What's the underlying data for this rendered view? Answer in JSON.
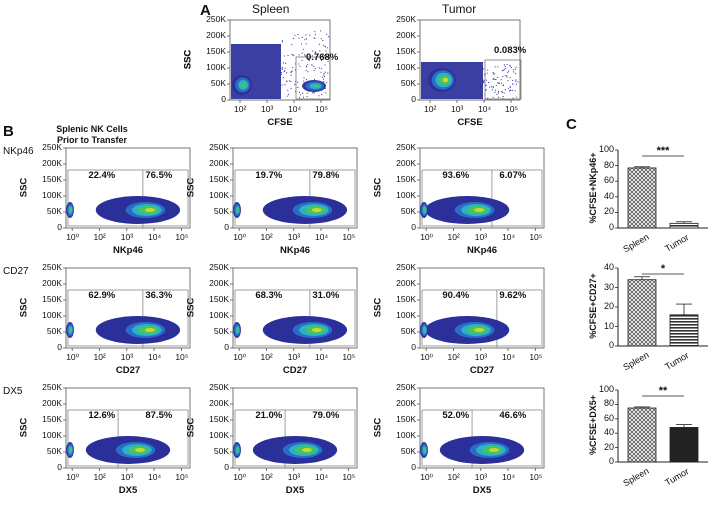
{
  "panels": {
    "A": "A",
    "B": "B",
    "C": "C"
  },
  "panel_a": {
    "spleen_title": "Spleen",
    "tumor_title": "Tumor",
    "spleen_pct": "0.768%",
    "tumor_pct": "0.083%",
    "xlabel": "CFSE",
    "ylabel": "SSC",
    "yticks": [
      "250K",
      "200K",
      "150K",
      "100K",
      "50K",
      "0"
    ]
  },
  "panel_b": {
    "col1_title_line1": "Splenic NK Cells",
    "col1_title_line2": "Prior to Transfer",
    "ylabel": "SSC",
    "yticks": [
      "250K",
      "200K",
      "150K",
      "100K",
      "50K",
      "0"
    ],
    "rows": [
      {
        "marker": "NKp46",
        "xlabel": "NKp46",
        "plots": [
          [
            "22.4%",
            "76.5%"
          ],
          [
            "19.7%",
            "79.8%"
          ],
          [
            "93.6%",
            "6.07%"
          ]
        ]
      },
      {
        "marker": "CD27",
        "xlabel": "CD27",
        "plots": [
          [
            "62.9%",
            "36.3%"
          ],
          [
            "68.3%",
            "31.0%"
          ],
          [
            "90.4%",
            "9.62%"
          ]
        ]
      },
      {
        "marker": "DX5",
        "xlabel": "DX5",
        "plots": [
          [
            "12.6%",
            "87.5%"
          ],
          [
            "21.0%",
            "79.0%"
          ],
          [
            "52.0%",
            "46.6%"
          ]
        ]
      }
    ]
  },
  "chart_data": [
    {
      "type": "bar",
      "categories": [
        "Spleen",
        "Tumor"
      ],
      "values": [
        77,
        6
      ],
      "errors": [
        1.5,
        2
      ],
      "ylabel": "%CFSE+NKp46+",
      "ylim": [
        0,
        100
      ],
      "yticks": [
        0,
        20,
        40,
        60,
        80,
        100
      ],
      "significance": "***",
      "bar_colors": [
        "#b5b5b5",
        "#555555"
      ]
    },
    {
      "type": "bar",
      "categories": [
        "Spleen",
        "Tumor"
      ],
      "values": [
        34,
        16
      ],
      "errors": [
        1.5,
        5.5
      ],
      "ylabel": "%CFSE+CD27+",
      "ylim": [
        0,
        40
      ],
      "yticks": [
        0,
        10,
        20,
        30,
        40
      ],
      "significance": "*",
      "bar_colors": [
        "#b5b5b5",
        "#555555"
      ]
    },
    {
      "type": "bar",
      "categories": [
        "Spleen",
        "Tumor"
      ],
      "values": [
        75,
        48
      ],
      "errors": [
        1.5,
        4
      ],
      "ylabel": "%CFSE+DX5+",
      "ylim": [
        0,
        100
      ],
      "yticks": [
        0,
        20,
        40,
        60,
        80,
        100
      ],
      "significance": "**",
      "bar_colors": [
        "#b5b5b5",
        "#222222"
      ]
    }
  ]
}
